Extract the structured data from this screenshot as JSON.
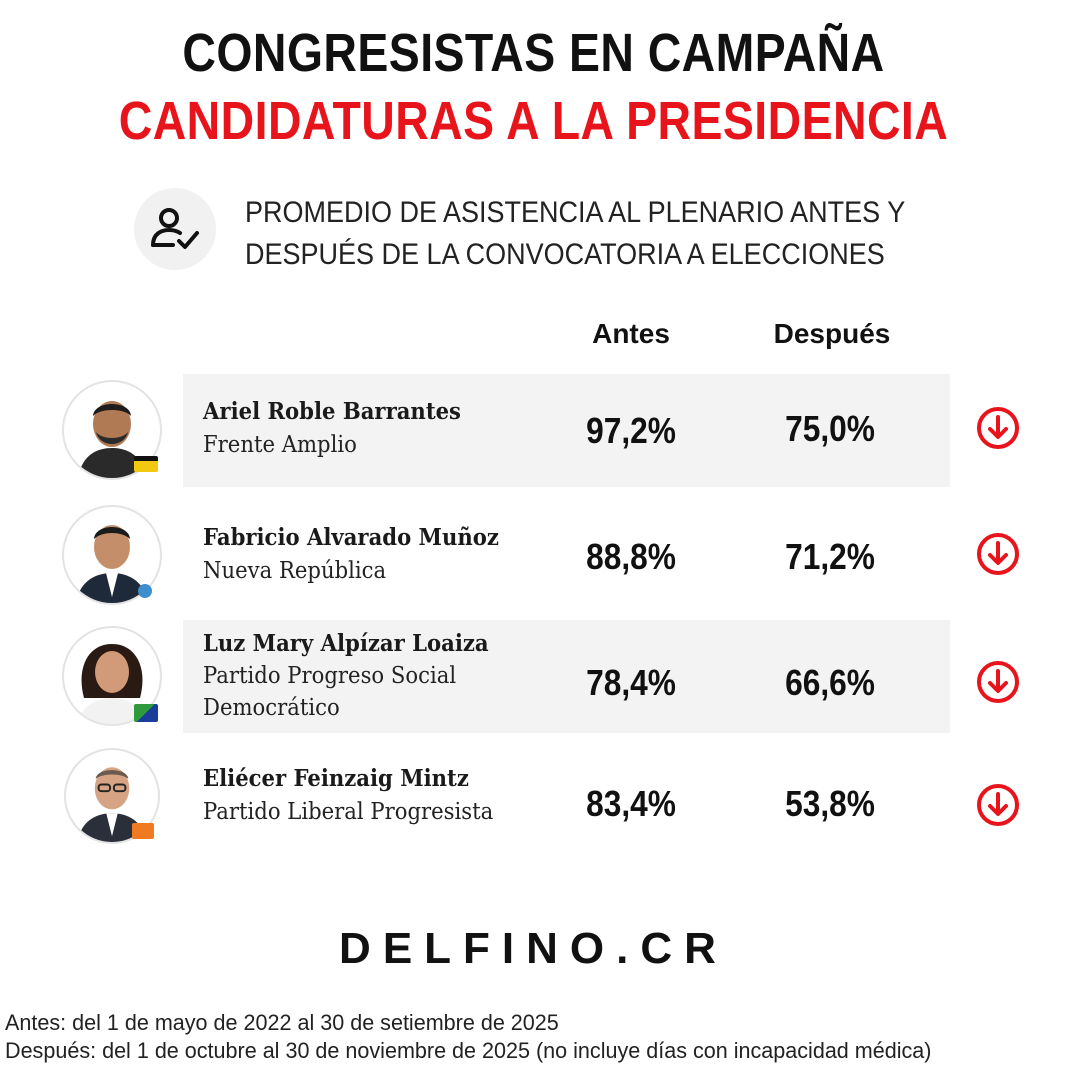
{
  "title_line1": "CONGRESISTAS EN CAMPAÑA",
  "title_line2": "CANDIDATURAS A LA PRESIDENCIA",
  "subtitle_line1": "PROMEDIO DE ASISTENCIA AL PLENARIO ANTES Y",
  "subtitle_line2": "DESPUÉS DE LA CONVOCATORIA A ELECCIONES",
  "subtitle_icon": "user-check-icon",
  "columns": {
    "antes": "Antes",
    "despues": "Después"
  },
  "rows": [
    {
      "name": "Ariel Roble Barrantes",
      "party_line1": "Frente Amplio",
      "party_line2": "",
      "antes": "97,2%",
      "despues": "75,0%",
      "trend_icon": "arrow-down-circle-icon"
    },
    {
      "name": "Fabricio Alvarado Muñoz",
      "party_line1": "Nueva República",
      "party_line2": "",
      "antes": "88,8%",
      "despues": "71,2%",
      "trend_icon": "arrow-down-circle-icon"
    },
    {
      "name": "Luz Mary Alpízar Loaiza",
      "party_line1": "Partido Progreso Social",
      "party_line2": "Democrático",
      "antes": "78,4%",
      "despues": "66,6%",
      "trend_icon": "arrow-down-circle-icon"
    },
    {
      "name": "Eliécer Feinzaig Mintz",
      "party_line1": "Partido Liberal Progresista",
      "party_line2": "",
      "antes": "83,4%",
      "despues": "53,8%",
      "trend_icon": "arrow-down-circle-icon"
    }
  ],
  "brand": "DELFINO.CR",
  "footnote_antes": "Antes: del 1 de mayo de 2022 al 30 de setiembre de 2025",
  "footnote_despues": "Después: del 1 de octubre al 30 de noviembre de 2025 (no incluye días con incapacidad médica)",
  "colors": {
    "accent_red": "#e8141b",
    "row_gray": "#f3f3f3",
    "text_dark": "#111111"
  }
}
